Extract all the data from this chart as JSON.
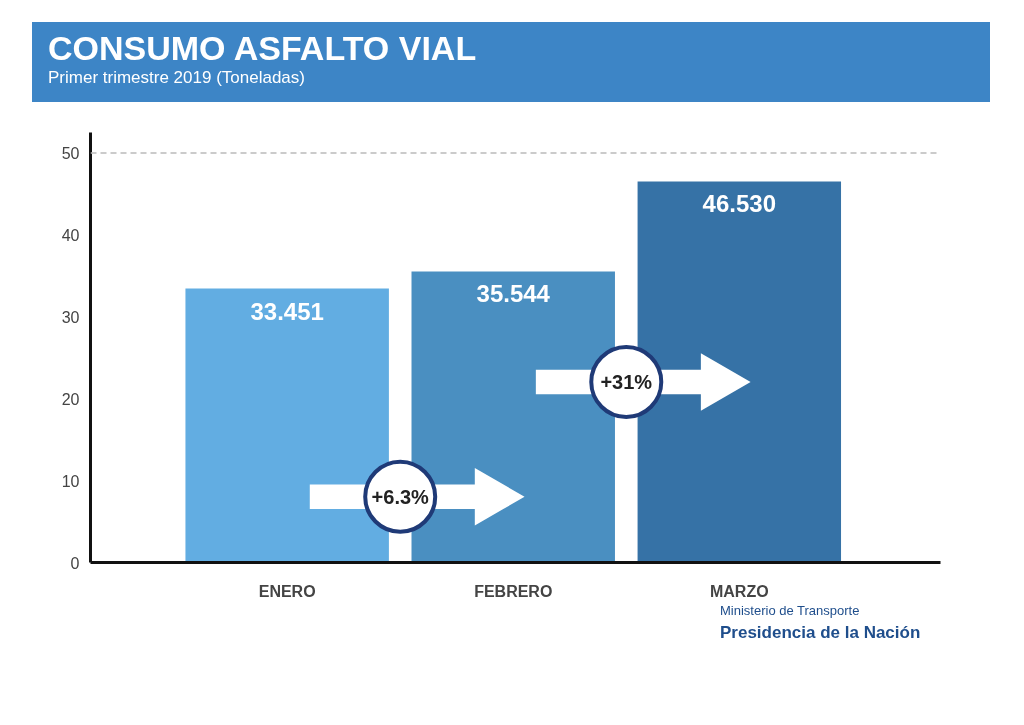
{
  "chart_data": {
    "type": "bar",
    "title": "CONSUMO ASFALTO VIAL",
    "subtitle": "Primer trimestre 2019 (Toneladas)",
    "categories": [
      "ENERO",
      "FEBRERO",
      "MARZO"
    ],
    "values": [
      33.451,
      35.544,
      46.53
    ],
    "colors": [
      "#62ade2",
      "#4a8fc1",
      "#3672a6"
    ],
    "value_labels": [
      "33.451",
      "35.544",
      "46.530"
    ],
    "ylim": [
      0,
      52.5
    ],
    "yticks": [
      0,
      10,
      20,
      30,
      40,
      50
    ],
    "grid": false,
    "ref_lines": [
      {
        "axis": "y",
        "value": 50,
        "color": "#bbbbbb",
        "line_style": "dashed"
      }
    ],
    "annotations": [
      "+6.3%",
      "+31%",
      "Ministerio de Transporte",
      "Presidencia de la Nación"
    ]
  }
}
